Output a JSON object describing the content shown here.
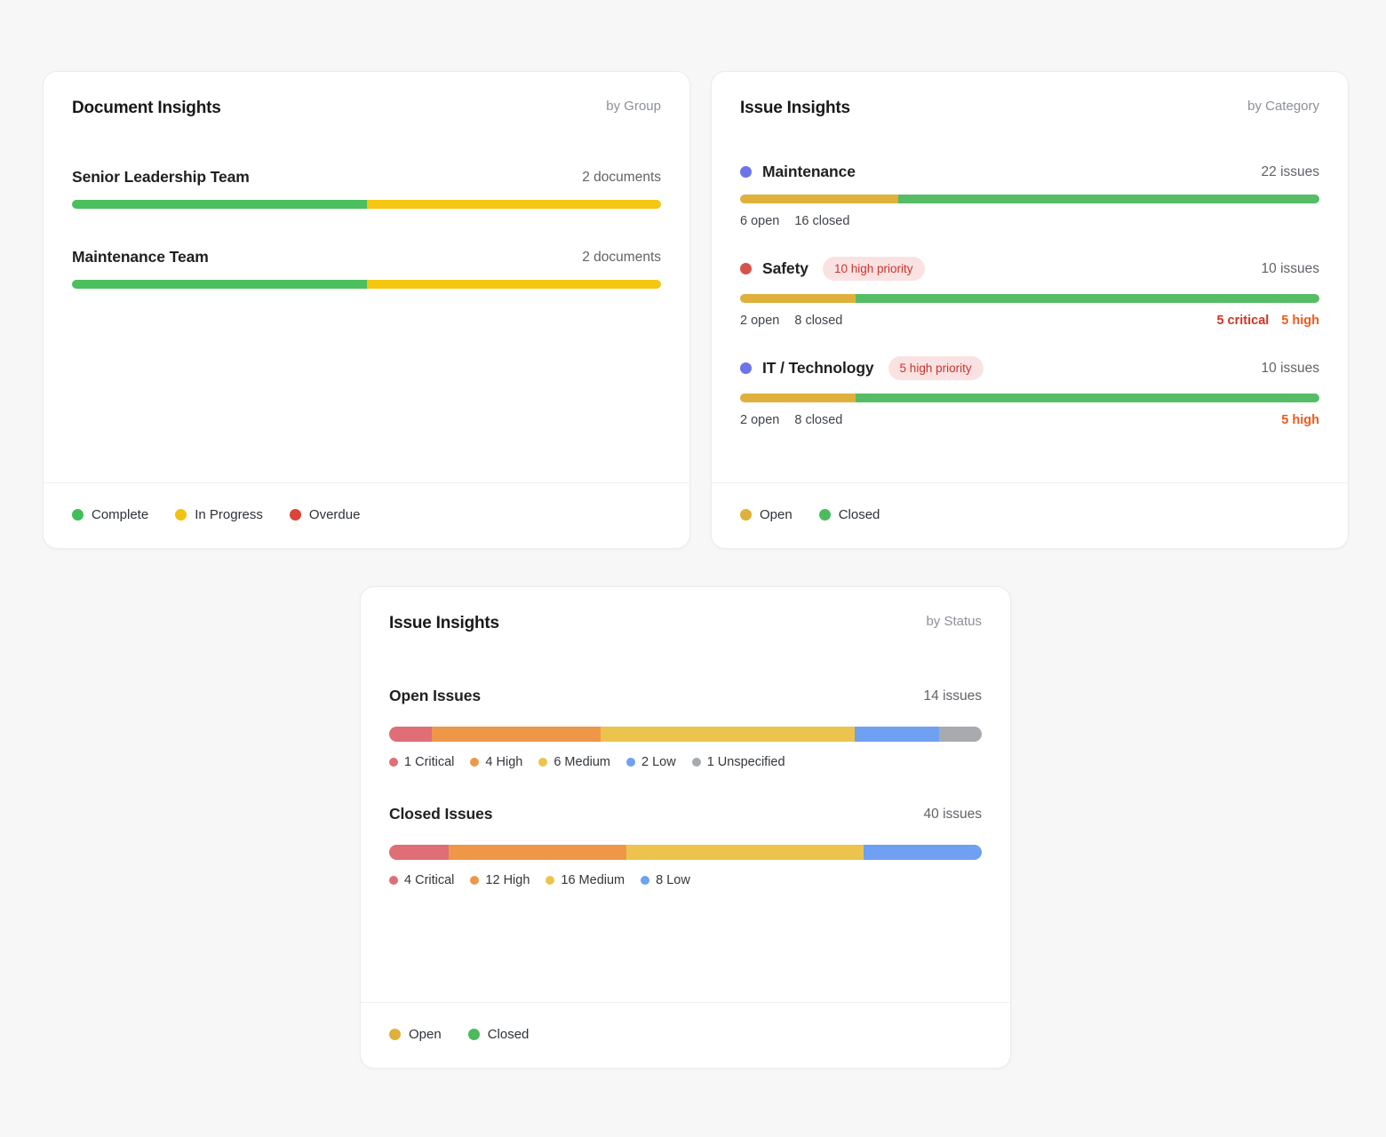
{
  "cards": [
    {
      "key": "document-insights-by-group",
      "title": "Document Insights",
      "subtitle": "by Group",
      "thick_bars": false,
      "rows": [
        {
          "label": "Senior Leadership Team",
          "count": "2 documents",
          "bar": [
            {
              "name": "Complete",
              "color": "#4cbf5e",
              "pct": 50
            },
            {
              "name": "In Progress",
              "color": "#f4c713",
              "pct": 50
            }
          ]
        },
        {
          "label": "Maintenance Team",
          "count": "2 documents",
          "bar": [
            {
              "name": "Complete",
              "color": "#4cbf5e",
              "pct": 50
            },
            {
              "name": "In Progress",
              "color": "#f4c713",
              "pct": 50
            }
          ]
        }
      ],
      "legend": [
        {
          "label": "Complete",
          "color": "#3fbf58"
        },
        {
          "label": "In Progress",
          "color": "#f2c213"
        },
        {
          "label": "Overdue",
          "color": "#db4437"
        }
      ]
    },
    {
      "key": "issue-insights-by-category",
      "title": "Issue Insights",
      "subtitle": "by Category",
      "thick_bars": false,
      "rows": [
        {
          "dot": "#6b75e9",
          "label": "Maintenance",
          "count": "22 issues",
          "bar": [
            {
              "name": "Open",
              "color": "#dfb13c",
              "pct": 27.3
            },
            {
              "name": "Closed",
              "color": "#56bd66",
              "pct": 72.7
            }
          ],
          "sub_left": [
            "6 open",
            "16 closed"
          ],
          "sub_right": []
        },
        {
          "dot": "#d5534a",
          "label": "Safety",
          "badge": "10 high priority",
          "count": "10 issues",
          "bar": [
            {
              "name": "Open",
              "color": "#dfb13c",
              "pct": 20
            },
            {
              "name": "Closed",
              "color": "#56bd66",
              "pct": 80
            }
          ],
          "sub_left": [
            "2 open",
            "8 closed"
          ],
          "sub_right": [
            {
              "text": "5 critical",
              "color": "#ce3426"
            },
            {
              "text": "5 high",
              "color": "#ee5b1e"
            }
          ]
        },
        {
          "dot": "#6b75e9",
          "label": "IT / Technology",
          "badge": "5 high priority",
          "count": "10 issues",
          "bar": [
            {
              "name": "Open",
              "color": "#dfb13c",
              "pct": 20
            },
            {
              "name": "Closed",
              "color": "#56bd66",
              "pct": 80
            }
          ],
          "sub_left": [
            "2 open",
            "8 closed"
          ],
          "sub_right": [
            {
              "text": "5 high",
              "color": "#ee5b1e"
            }
          ]
        }
      ],
      "legend": [
        {
          "label": "Open",
          "color": "#dfb13c"
        },
        {
          "label": "Closed",
          "color": "#4cbb5e"
        }
      ]
    },
    {
      "key": "issue-insights-by-status",
      "title": "Issue Insights",
      "subtitle": "by Status",
      "thick_bars": true,
      "rows": [
        {
          "label": "Open Issues",
          "count": "14 issues",
          "bar": [
            {
              "name": "Critical",
              "color": "#df6e76",
              "pct": 7.14
            },
            {
              "name": "High",
              "color": "#ef9749",
              "pct": 28.57
            },
            {
              "name": "Medium",
              "color": "#ecc44d",
              "pct": 42.86
            },
            {
              "name": "Low",
              "color": "#6fa0f2",
              "pct": 14.29
            },
            {
              "name": "Unspecified",
              "color": "#a7abaf",
              "pct": 7.14
            }
          ],
          "bar_legend": [
            {
              "label": "1 Critical",
              "color": "#df6e76"
            },
            {
              "label": "4 High",
              "color": "#ef9749"
            },
            {
              "label": "6 Medium",
              "color": "#ecc44d"
            },
            {
              "label": "2 Low",
              "color": "#6fa0f2"
            },
            {
              "label": "1 Unspecified",
              "color": "#a7abaf"
            }
          ]
        },
        {
          "label": "Closed Issues",
          "count": "40 issues",
          "bar": [
            {
              "name": "Critical",
              "color": "#df6e76",
              "pct": 10
            },
            {
              "name": "High",
              "color": "#ef9749",
              "pct": 30
            },
            {
              "name": "Medium",
              "color": "#ecc44d",
              "pct": 40
            },
            {
              "name": "Low",
              "color": "#6fa0f2",
              "pct": 20
            }
          ],
          "bar_legend": [
            {
              "label": "4 Critical",
              "color": "#df6e76"
            },
            {
              "label": "12 High",
              "color": "#ef9749"
            },
            {
              "label": "16 Medium",
              "color": "#ecc44d"
            },
            {
              "label": "8 Low",
              "color": "#6fa0f2"
            }
          ]
        }
      ],
      "legend": [
        {
          "label": "Open",
          "color": "#dfb13c"
        },
        {
          "label": "Closed",
          "color": "#4cbb5e"
        }
      ]
    }
  ],
  "chart_data": [
    {
      "type": "bar",
      "title": "Document Insights by Group",
      "categories": [
        "Senior Leadership Team",
        "Maintenance Team"
      ],
      "series": [
        {
          "name": "Complete",
          "values": [
            1,
            1
          ]
        },
        {
          "name": "In Progress",
          "values": [
            1,
            1
          ]
        },
        {
          "name": "Overdue",
          "values": [
            0,
            0
          ]
        }
      ],
      "totals_label": [
        "2 documents",
        "2 documents"
      ],
      "legend_position": "bottom"
    },
    {
      "type": "bar",
      "title": "Issue Insights by Category",
      "categories": [
        "Maintenance",
        "Safety",
        "IT / Technology"
      ],
      "series": [
        {
          "name": "Open",
          "values": [
            6,
            2,
            2
          ]
        },
        {
          "name": "Closed",
          "values": [
            16,
            8,
            8
          ]
        }
      ],
      "totals": [
        22,
        10,
        10
      ],
      "annotations": [
        {
          "category": "Safety",
          "badge": "10 high priority",
          "detail": "5 critical, 5 high"
        },
        {
          "category": "IT / Technology",
          "badge": "5 high priority",
          "detail": "5 high"
        }
      ],
      "legend_position": "bottom"
    },
    {
      "type": "bar",
      "title": "Issue Insights by Status",
      "categories": [
        "Open Issues",
        "Closed Issues"
      ],
      "series": [
        {
          "name": "Critical",
          "values": [
            1,
            4
          ]
        },
        {
          "name": "High",
          "values": [
            4,
            12
          ]
        },
        {
          "name": "Medium",
          "values": [
            6,
            16
          ]
        },
        {
          "name": "Low",
          "values": [
            2,
            8
          ]
        },
        {
          "name": "Unspecified",
          "values": [
            1,
            0
          ]
        }
      ],
      "totals": [
        14,
        40
      ],
      "legend_position": "bottom"
    }
  ]
}
